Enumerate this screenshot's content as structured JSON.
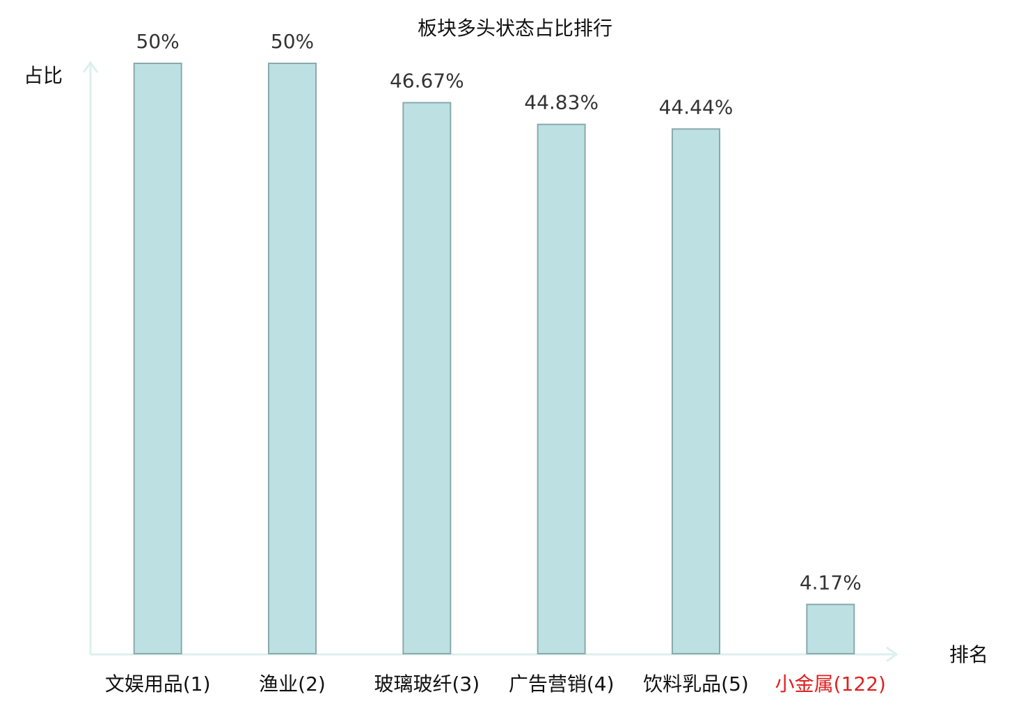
{
  "chart_data": {
    "type": "bar",
    "title": "板块多头状态占比排行",
    "y_label": "占比",
    "x_label": "排名",
    "categories": [
      "文娱用品(1)",
      "渔业(2)",
      "玻璃玻纤(3)",
      "广告营销(4)",
      "饮料乳品(5)",
      "小金属(122)"
    ],
    "category_colors": [
      "#111111",
      "#111111",
      "#111111",
      "#111111",
      "#111111",
      "#e02020"
    ],
    "values": [
      50,
      50,
      46.67,
      44.83,
      44.44,
      4.17
    ],
    "value_labels": [
      "50%",
      "50%",
      "46.67%",
      "44.83%",
      "44.44%",
      "4.17%"
    ],
    "color": "#bde0e3",
    "ylim": [
      0,
      50
    ]
  }
}
